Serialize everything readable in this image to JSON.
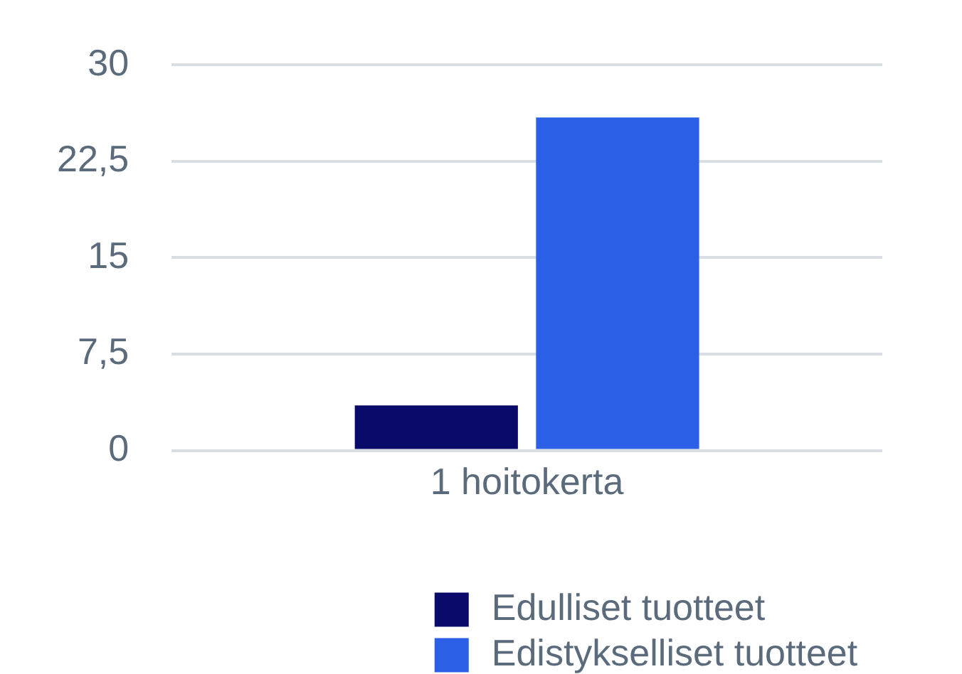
{
  "chart_data": {
    "type": "bar",
    "categories": [
      "1 hoitokerta"
    ],
    "series": [
      {
        "name": "Edulliset tuotteet",
        "color": "#0a0a6b",
        "values": [
          3.5
        ]
      },
      {
        "name": "Edistykselliset tuotteet",
        "color": "#2a5fe6",
        "values": [
          25.9
        ]
      }
    ],
    "ylim": [
      0,
      30
    ],
    "yticks": [
      0,
      {
        "value": 7.5,
        "label": "7,5"
      },
      15,
      {
        "value": 22.5,
        "label": "22,5"
      },
      30
    ],
    "grid": "y",
    "legend": "bottom"
  }
}
